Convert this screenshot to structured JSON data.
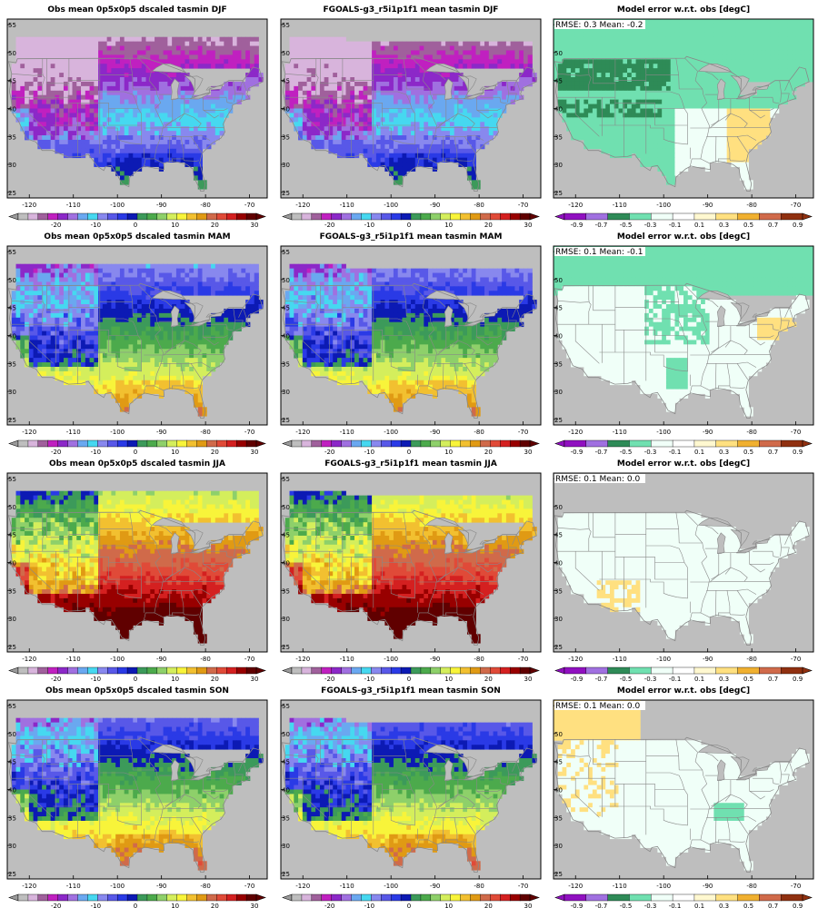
{
  "colors": {
    "ocean": "#bebebe",
    "land_outside": "#bebebe",
    "border": "#888888",
    "frame": "#000000",
    "temp_scale": [
      "#bebebe",
      "#d8b4dc",
      "#a0609c",
      "#c020c0",
      "#8c28c8",
      "#a070e0",
      "#6aa8f0",
      "#46d8f0",
      "#8888ee",
      "#5858e8",
      "#2a3ae6",
      "#0c1ab4",
      "#3c9a5a",
      "#4caa4c",
      "#8ed06a",
      "#d4ee5c",
      "#f8f43a",
      "#f2c030",
      "#e09a14",
      "#d06a4a",
      "#e04a38",
      "#d42020",
      "#980000",
      "#600000"
    ],
    "err_scale": [
      "#9010c0",
      "#a070e0",
      "#2e8b57",
      "#70e0b0",
      "#f0fff8",
      "#ffffff",
      "#fff8d0",
      "#ffe080",
      "#f0b030",
      "#d06a4a",
      "#903010"
    ]
  },
  "icons": [
    "colorbar-left-arrow-icon",
    "colorbar-right-arrow-icon"
  ],
  "colorbars": {
    "temp": {
      "labels": [
        "-20",
        "-10",
        "0",
        "10",
        "20",
        "30"
      ]
    },
    "error": {
      "labels": [
        "-0.9",
        "-0.7",
        "-0.5",
        "-0.3",
        "-0.1",
        "0.1",
        "0.3",
        "0.5",
        "0.7",
        "0.9"
      ]
    }
  },
  "axes": {
    "x_ticks": [
      "-120",
      "-110",
      "-100",
      "-90",
      "-80",
      "-70"
    ],
    "y_ticks": [
      "25",
      "30",
      "35",
      "40",
      "45",
      "50",
      "55"
    ]
  },
  "rows": [
    {
      "season": "DJF",
      "obs_title": "Obs mean 0p5x0p5 dscaled tasmin DJF",
      "model_title": "FGOALS-g3_r5i1p1f1 mean tasmin DJF",
      "err_title": "Model error w.r.t. obs [degC]",
      "rmse_label": "RMSE: 0.3  Mean: -0.2"
    },
    {
      "season": "MAM",
      "obs_title": "Obs mean 0p5x0p5 dscaled tasmin MAM",
      "model_title": "FGOALS-g3_r5i1p1f1 mean tasmin MAM",
      "err_title": "Model error w.r.t. obs [degC]",
      "rmse_label": "RMSE: 0.1  Mean: -0.1"
    },
    {
      "season": "JJA",
      "obs_title": "Obs mean 0p5x0p5 dscaled tasmin JJA",
      "model_title": "FGOALS-g3_r5i1p1f1 mean tasmin JJA",
      "err_title": "Model error w.r.t. obs [degC]",
      "rmse_label": "RMSE: 0.1  Mean: 0.0"
    },
    {
      "season": "SON",
      "obs_title": "Obs mean 0p5x0p5 dscaled tasmin SON",
      "model_title": "FGOALS-g3_r5i1p1f1 mean tasmin SON",
      "err_title": "Model error w.r.t. obs [degC]",
      "rmse_label": "RMSE: 0.1  Mean: 0.0"
    }
  ],
  "chart_data": {
    "type": "heatmap",
    "map_extent": {
      "lon": [
        -125,
        -66
      ],
      "lat": [
        24,
        56
      ]
    },
    "temp_scale_range": [
      -30,
      30
    ],
    "error_scale_range": [
      -1.0,
      1.0
    ],
    "panels": [
      {
        "row": "DJF",
        "col": "obs",
        "approx_mean_tasmin_degC": -6
      },
      {
        "row": "DJF",
        "col": "model",
        "approx_mean_tasmin_degC": -6
      },
      {
        "row": "DJF",
        "col": "error",
        "rmse": 0.3,
        "mean_error": -0.2
      },
      {
        "row": "MAM",
        "col": "obs",
        "approx_mean_tasmin_degC": 2
      },
      {
        "row": "MAM",
        "col": "model",
        "approx_mean_tasmin_degC": 2
      },
      {
        "row": "MAM",
        "col": "error",
        "rmse": 0.1,
        "mean_error": -0.1
      },
      {
        "row": "JJA",
        "col": "obs",
        "approx_mean_tasmin_degC": 14
      },
      {
        "row": "JJA",
        "col": "model",
        "approx_mean_tasmin_degC": 14
      },
      {
        "row": "JJA",
        "col": "error",
        "rmse": 0.1,
        "mean_error": 0.0
      },
      {
        "row": "SON",
        "col": "obs",
        "approx_mean_tasmin_degC": 3
      },
      {
        "row": "SON",
        "col": "model",
        "approx_mean_tasmin_degC": 3
      },
      {
        "row": "SON",
        "col": "error",
        "rmse": 0.1,
        "mean_error": 0.0
      }
    ]
  }
}
